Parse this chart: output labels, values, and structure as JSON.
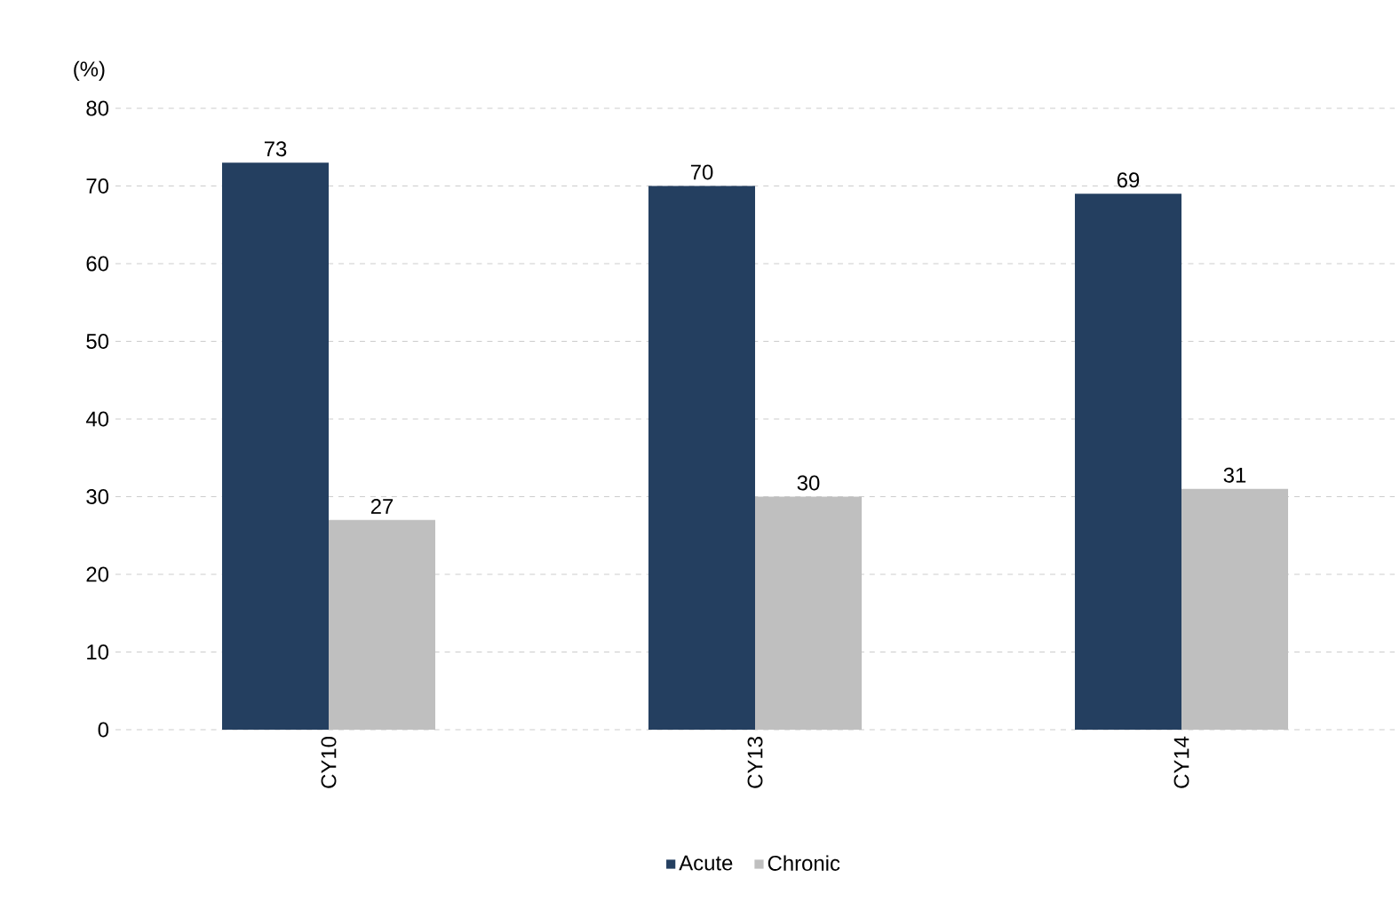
{
  "chart_data": {
    "type": "bar",
    "ylabel": "(%)",
    "categories": [
      "CY10",
      "CY13",
      "CY14"
    ],
    "series": [
      {
        "name": "Acute",
        "color": "#243f60",
        "values": [
          73,
          70,
          69
        ]
      },
      {
        "name": "Chronic",
        "color": "#bfbfbf",
        "values": [
          27,
          30,
          31
        ]
      }
    ],
    "ylim": [
      0,
      80
    ],
    "yticks": [
      0,
      10,
      20,
      30,
      40,
      50,
      60,
      70,
      80
    ],
    "grid": "y",
    "data_labels": true,
    "legend": "bottom"
  }
}
